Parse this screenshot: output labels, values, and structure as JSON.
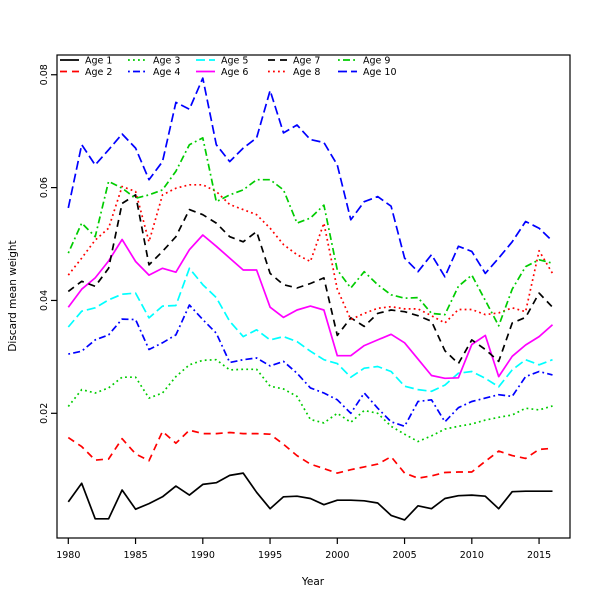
{
  "figure": {
    "background": "#ffffff",
    "border_color": "#000000"
  },
  "chart_data": {
    "type": "line",
    "title": "",
    "xlabel": "Year",
    "ylabel": "Discard mean weight",
    "grid": false,
    "legend_position": "top-left-inside",
    "legend_columns": 5,
    "legend_border": false,
    "xlim": [
      1979.16,
      2017.3
    ],
    "ylim": [
      -0.0021,
      0.0835
    ],
    "x_ticks": [
      1980,
      1985,
      1990,
      1995,
      2000,
      2005,
      2010,
      2015
    ],
    "x_tick_labels": [
      "1980",
      "1985",
      "1990",
      "1995",
      "2000",
      "2005",
      "2010",
      "2015"
    ],
    "y_ticks": [
      0.02,
      0.04,
      0.06,
      0.08
    ],
    "y_tick_labels": [
      "0.02",
      "0.04",
      "0.06",
      "0.08"
    ],
    "x": [
      1980,
      1981,
      1982,
      1983,
      1984,
      1985,
      1986,
      1987,
      1988,
      1989,
      1990,
      1991,
      1992,
      1993,
      1994,
      1995,
      1996,
      1997,
      1998,
      1999,
      2000,
      2001,
      2002,
      2003,
      2004,
      2005,
      2006,
      2007,
      2008,
      2009,
      2010,
      2011,
      2012,
      2013,
      2014,
      2015,
      2016
    ],
    "series": [
      {
        "name": "Age 1",
        "color": "#000000",
        "dash": "solid",
        "values": [
          0.0043,
          0.0076,
          0.0013,
          0.0013,
          0.0064,
          0.003,
          0.004,
          0.0052,
          0.0071,
          0.0055,
          0.0074,
          0.0077,
          0.009,
          0.0094,
          0.006,
          0.0031,
          0.0052,
          0.0053,
          0.0049,
          0.0038,
          0.0046,
          0.0046,
          0.0045,
          0.0041,
          0.0019,
          0.0011,
          0.0036,
          0.0031,
          0.0049,
          0.0054,
          0.0055,
          0.0053,
          0.0031,
          0.0061,
          0.0062,
          0.0062,
          0.0062
        ]
      },
      {
        "name": "Age 2",
        "color": "#ff0000",
        "dash": "dashed",
        "values": [
          0.0157,
          0.0141,
          0.0117,
          0.0119,
          0.0155,
          0.0128,
          0.0116,
          0.0168,
          0.0147,
          0.017,
          0.0164,
          0.0164,
          0.0166,
          0.0164,
          0.0164,
          0.0163,
          0.0145,
          0.0125,
          0.011,
          0.0102,
          0.0094,
          0.01,
          0.0105,
          0.011,
          0.0123,
          0.0094,
          0.0085,
          0.0089,
          0.0095,
          0.0096,
          0.0096,
          0.0115,
          0.0133,
          0.0125,
          0.012,
          0.0136,
          0.0138
        ]
      },
      {
        "name": "Age 3",
        "color": "#00cc00",
        "dash": "dotted",
        "values": [
          0.0212,
          0.0242,
          0.0236,
          0.0245,
          0.0264,
          0.0264,
          0.0227,
          0.0236,
          0.0265,
          0.0286,
          0.0294,
          0.0295,
          0.0277,
          0.0278,
          0.0278,
          0.0248,
          0.0243,
          0.023,
          0.0189,
          0.0183,
          0.02,
          0.0184,
          0.0205,
          0.02,
          0.0177,
          0.0163,
          0.015,
          0.016,
          0.0172,
          0.0177,
          0.0181,
          0.0188,
          0.0193,
          0.0197,
          0.0209,
          0.0206,
          0.0213
        ]
      },
      {
        "name": "Age 4",
        "color": "#0000ff",
        "dash": "dashdot",
        "values": [
          0.0305,
          0.031,
          0.033,
          0.0339,
          0.0367,
          0.0366,
          0.0313,
          0.0325,
          0.0339,
          0.0392,
          0.0366,
          0.0342,
          0.029,
          0.0295,
          0.0298,
          0.0284,
          0.0292,
          0.0271,
          0.0245,
          0.0236,
          0.0224,
          0.02,
          0.0236,
          0.0209,
          0.0185,
          0.0177,
          0.0221,
          0.0224,
          0.0185,
          0.021,
          0.0221,
          0.0227,
          0.0233,
          0.023,
          0.0265,
          0.0274,
          0.0268
        ]
      },
      {
        "name": "Age 5",
        "color": "#00ffff",
        "dash": "longdash",
        "values": [
          0.0353,
          0.0381,
          0.0387,
          0.0401,
          0.0411,
          0.0413,
          0.0369,
          0.039,
          0.0391,
          0.0457,
          0.0428,
          0.0405,
          0.0363,
          0.0336,
          0.0348,
          0.033,
          0.0336,
          0.0327,
          0.031,
          0.0295,
          0.0288,
          0.0264,
          0.028,
          0.0283,
          0.0274,
          0.0248,
          0.0242,
          0.0239,
          0.025,
          0.0271,
          0.0274,
          0.0262,
          0.0247,
          0.0277,
          0.0295,
          0.0286,
          0.0295
        ]
      },
      {
        "name": "Age 6",
        "color": "#ff00ff",
        "dash": "solid",
        "values": [
          0.0388,
          0.042,
          0.044,
          0.047,
          0.0508,
          0.0469,
          0.0445,
          0.0457,
          0.045,
          0.049,
          0.0516,
          0.0496,
          0.0475,
          0.0454,
          0.0454,
          0.0388,
          0.037,
          0.0383,
          0.039,
          0.0383,
          0.0302,
          0.0302,
          0.032,
          0.033,
          0.034,
          0.0325,
          0.0296,
          0.0267,
          0.0262,
          0.0263,
          0.0322,
          0.0338,
          0.0265,
          0.0301,
          0.0321,
          0.0336,
          0.0357
        ]
      },
      {
        "name": "Age 7",
        "color": "#000000",
        "dash": "dashed",
        "values": [
          0.0416,
          0.0434,
          0.0425,
          0.0457,
          0.0572,
          0.0587,
          0.0463,
          0.0487,
          0.0513,
          0.0561,
          0.0552,
          0.0537,
          0.0513,
          0.0504,
          0.0522,
          0.0448,
          0.0428,
          0.0422,
          0.043,
          0.044,
          0.0338,
          0.0369,
          0.0354,
          0.0377,
          0.0383,
          0.038,
          0.0373,
          0.0363,
          0.0311,
          0.0288,
          0.033,
          0.0313,
          0.0292,
          0.036,
          0.037,
          0.0413,
          0.0388
        ]
      },
      {
        "name": "Age 8",
        "color": "#ff0000",
        "dash": "dotted",
        "values": [
          0.0445,
          0.0475,
          0.0507,
          0.0528,
          0.0602,
          0.0593,
          0.0504,
          0.0587,
          0.0599,
          0.0605,
          0.0605,
          0.0593,
          0.057,
          0.0561,
          0.0552,
          0.0528,
          0.0499,
          0.0481,
          0.0469,
          0.0537,
          0.042,
          0.0366,
          0.0377,
          0.0386,
          0.0389,
          0.0385,
          0.0385,
          0.0373,
          0.036,
          0.0384,
          0.0384,
          0.0375,
          0.0378,
          0.0387,
          0.038,
          0.0488,
          0.0448
        ]
      },
      {
        "name": "Age 9",
        "color": "#00cc00",
        "dash": "dashdot",
        "values": [
          0.0484,
          0.0537,
          0.0513,
          0.0611,
          0.0599,
          0.0581,
          0.0587,
          0.0596,
          0.0629,
          0.0676,
          0.0688,
          0.0575,
          0.0587,
          0.0596,
          0.0614,
          0.0614,
          0.0596,
          0.0537,
          0.0546,
          0.0569,
          0.0454,
          0.0422,
          0.0451,
          0.0428,
          0.041,
          0.0404,
          0.0405,
          0.0377,
          0.0375,
          0.0425,
          0.0445,
          0.04,
          0.0355,
          0.042,
          0.046,
          0.0472,
          0.0466
        ]
      },
      {
        "name": "Age 10",
        "color": "#0000ff",
        "dash": "longdash",
        "values": [
          0.0564,
          0.0676,
          0.064,
          0.0667,
          0.0695,
          0.067,
          0.0614,
          0.0646,
          0.0751,
          0.0739,
          0.0794,
          0.0676,
          0.0646,
          0.067,
          0.0688,
          0.0772,
          0.0697,
          0.0711,
          0.0685,
          0.068,
          0.064,
          0.0543,
          0.0575,
          0.0584,
          0.0567,
          0.0475,
          0.0451,
          0.0481,
          0.0442,
          0.0496,
          0.0487,
          0.0448,
          0.0475,
          0.0504,
          0.054,
          0.0528,
          0.0505
        ]
      }
    ]
  }
}
